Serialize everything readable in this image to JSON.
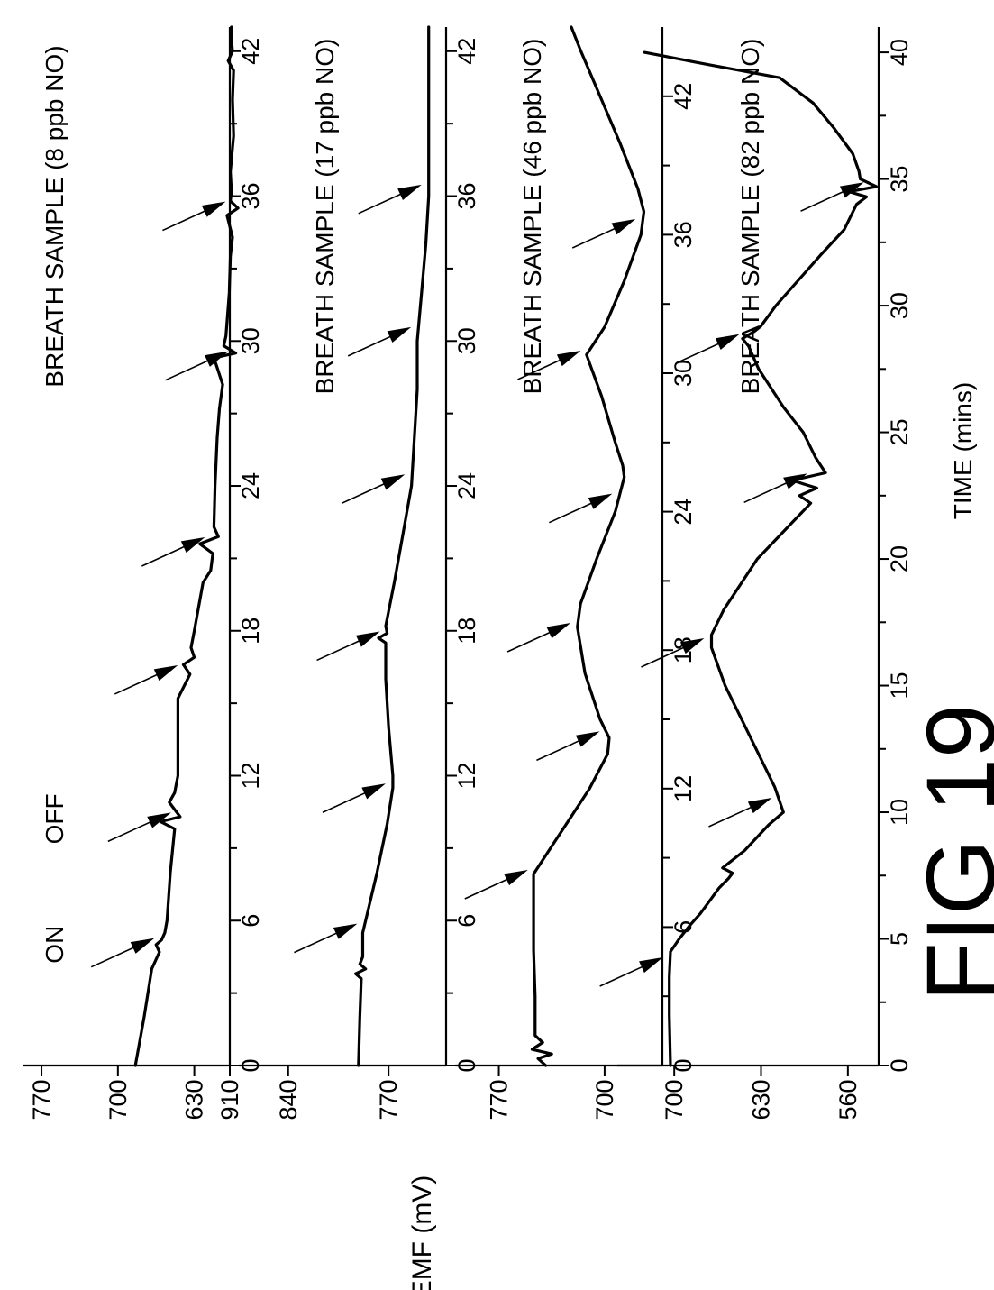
{
  "figure_label": "FIG. 19",
  "figure_label_text": "FIG 19",
  "chart_data": [
    {
      "type": "line",
      "title": "BREATH SAMPLE (8 ppb NO)",
      "xlabel": "",
      "ylabel": "",
      "xlim": [
        0,
        43
      ],
      "ylim": [
        595,
        775
      ],
      "x_ticks": [
        0,
        6,
        12,
        18,
        24,
        30,
        36,
        42
      ],
      "y_ticks": [
        910,
        630,
        700,
        770
      ],
      "annotations": [
        {
          "text": "ON",
          "x": 5.2,
          "y": 658
        },
        {
          "text": "OFF",
          "x": 10.4,
          "y": 650
        }
      ],
      "arrow_x": [
        5.2,
        10.4,
        16.5,
        21.8,
        29.5,
        35.7
      ],
      "series": [
        {
          "x": [
            0,
            2,
            4,
            4.7,
            5.0,
            5.2,
            5.5,
            6,
            8,
            9.8,
            10.1,
            10.3,
            10.6,
            10.9,
            11.3,
            12,
            14,
            15.2,
            16.2,
            16.6,
            16.9,
            17.3,
            18,
            20,
            20.5,
            21.2,
            21.6,
            21.9,
            22.3,
            24,
            26,
            27.2,
            28.2,
            29.3,
            29.5,
            29.8,
            30.2,
            32,
            33.5,
            34.3,
            35.2,
            35.5,
            35.8,
            36.2,
            37,
            38.5,
            40,
            41.2,
            41.6,
            42,
            42.5,
            43
          ],
          "y": [
            684,
            676,
            669,
            662,
            665,
            660,
            657,
            655,
            652,
            648,
            661,
            643,
            648,
            653,
            648,
            645,
            645,
            645,
            634,
            640,
            630,
            633,
            630,
            622,
            615,
            613,
            625,
            608,
            612,
            611,
            609,
            607,
            604,
            612,
            592,
            603,
            601,
            598,
            597,
            595,
            600,
            590,
            597,
            596,
            597,
            594,
            595,
            594,
            599,
            595,
            596,
            596
          ]
        }
      ]
    },
    {
      "type": "line",
      "title": "BREATH SAMPLE (17 ppb NO)",
      "xlabel": "",
      "ylabel": "EMF (mV)",
      "xlim": [
        0,
        43
      ],
      "ylim": [
        728,
        865
      ],
      "x_ticks": [
        0,
        6,
        12,
        18,
        24,
        30,
        36,
        42
      ],
      "y_ticks": [
        770,
        840
      ],
      "arrow_x": [
        5.8,
        11.6,
        17.9,
        24.4,
        30.5,
        36.4
      ],
      "series": [
        {
          "x": [
            0,
            2,
            3.6,
            3.8,
            4.0,
            4.2,
            4.5,
            5.5,
            6,
            8,
            10,
            11.5,
            12,
            14,
            16,
            17.5,
            17.7,
            17.9,
            18.2,
            20,
            22,
            24,
            26,
            28,
            30,
            32,
            34,
            36,
            38,
            40,
            42,
            43
          ],
          "y": [
            791,
            790,
            789,
            793,
            786,
            790,
            788,
            788,
            786,
            778,
            771,
            767,
            767,
            770,
            772,
            772,
            777,
            771,
            772,
            766,
            760,
            754,
            752,
            750,
            750,
            747,
            744,
            742,
            742,
            742,
            742,
            742
          ]
        }
      ]
    },
    {
      "type": "line",
      "title": "BREATH SAMPLE (46 ppb NO)",
      "xlabel": "",
      "ylabel": "",
      "xlim": [
        0,
        45
      ],
      "ylim": [
        660,
        790
      ],
      "x_ticks": [
        0,
        6,
        12,
        18,
        24,
        30,
        36,
        42
      ],
      "y_ticks": [
        700,
        770
      ],
      "arrow_x": [
        8.4,
        14.4,
        19.1,
        24.7,
        30.9,
        36.6
      ],
      "series": [
        {
          "x": [
            0,
            0.3,
            0.5,
            0.7,
            1.0,
            1.3,
            3,
            5,
            7,
            8.3,
            10,
            12,
            13.5,
            14.2,
            15,
            17,
            19,
            20,
            22,
            24,
            25.5,
            26,
            27,
            29,
            30.8,
            32,
            34,
            36,
            37,
            38,
            40,
            42,
            44,
            45
          ],
          "y": [
            739,
            744,
            735,
            748,
            741,
            746,
            746,
            747,
            747,
            747,
            730,
            710,
            698,
            697,
            703,
            713,
            718,
            716,
            705,
            693,
            687,
            688,
            693,
            702,
            712,
            700,
            687,
            676,
            674,
            678,
            690,
            703,
            716,
            722
          ]
        }
      ]
    },
    {
      "type": "line",
      "title": "BREATH SAMPLE (82 ppb NO)",
      "xlabel": "TIME (mins)",
      "ylabel": "",
      "xlim": [
        0,
        41
      ],
      "ylim": [
        533,
        735
      ],
      "x_ticks": [
        0,
        5,
        10,
        15,
        20,
        25,
        30,
        35,
        40
      ],
      "y_ticks": [
        560,
        630,
        700
      ],
      "arrow_x": [
        4.2,
        10.5,
        16.8,
        23.3,
        28.8,
        34.8
      ],
      "series": [
        {
          "x": [
            0,
            2,
            3.5,
            4.5,
            5.0,
            5.5,
            6,
            7,
            7.4,
            7.6,
            7.8,
            8.5,
            9.5,
            10,
            11,
            13,
            15,
            16.5,
            17,
            18,
            20,
            22.2,
            22.5,
            22.8,
            23.1,
            23.4,
            24,
            25,
            26,
            27.5,
            28.4,
            28.7,
            29,
            29.2,
            30,
            31,
            32,
            33,
            34,
            34.3,
            34.5,
            34.7,
            35,
            35.3,
            36,
            37,
            38,
            39,
            39.5,
            40
          ],
          "y": [
            703,
            704,
            704,
            703,
            696,
            688,
            679,
            664,
            656,
            653,
            661,
            643,
            624,
            612,
            619,
            639,
            659,
            670,
            670,
            660,
            633,
            590,
            599,
            585,
            605,
            578,
            586,
            596,
            612,
            632,
            640,
            645,
            635,
            630,
            618,
            600,
            582,
            563,
            553,
            545,
            559,
            537,
            550,
            551,
            556,
            571,
            588,
            615,
            671,
            724
          ]
        }
      ]
    }
  ]
}
